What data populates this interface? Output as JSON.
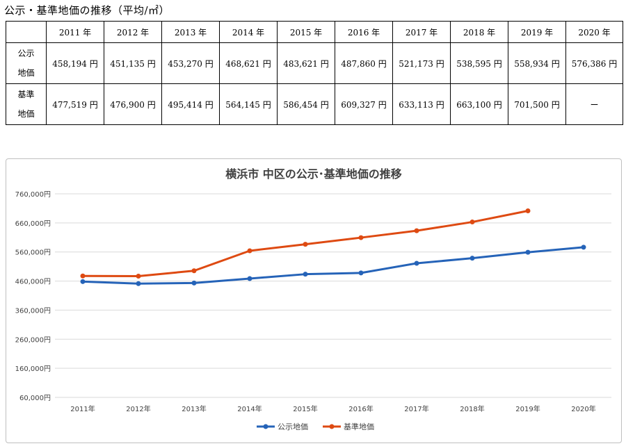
{
  "heading": "公示・基準地価の推移（平均/㎡）",
  "table": {
    "corner": "",
    "years": [
      "2011 年",
      "2012 年",
      "2013 年",
      "2014 年",
      "2015 年",
      "2016 年",
      "2017 年",
      "2018 年",
      "2019 年",
      "2020 年"
    ],
    "rows": [
      {
        "label_1": "公示",
        "label_2": "地価",
        "cells": [
          "458,194 円",
          "451,135 円",
          "453,270 円",
          "468,621 円",
          "483,621 円",
          "487,860 円",
          "521,173 円",
          "538,595 円",
          "558,934 円",
          "576,386 円"
        ]
      },
      {
        "label_1": "基準",
        "label_2": "地価",
        "cells": [
          "477,519 円",
          "476,900 円",
          "495,414 円",
          "564,145 円",
          "586,454 円",
          "609,327 円",
          "633,113 円",
          "663,100 円",
          "701,500 円",
          "ー"
        ]
      }
    ]
  },
  "chart_data": {
    "type": "line",
    "title": "横浜市 中区の公示･基準地価の推移",
    "categories": [
      "2011年",
      "2012年",
      "2013年",
      "2014年",
      "2015年",
      "2016年",
      "2017年",
      "2018年",
      "2019年",
      "2020年"
    ],
    "y_ticks": [
      "60,000円",
      "160,000円",
      "260,000円",
      "360,000円",
      "460,000円",
      "560,000円",
      "660,000円",
      "760,000円"
    ],
    "ylim": [
      60000,
      760000
    ],
    "y_tick_values": [
      60000,
      160000,
      260000,
      360000,
      460000,
      560000,
      660000,
      760000
    ],
    "grid": true,
    "legend_position": "bottom",
    "series": [
      {
        "name": "公示地価",
        "color": "#2563b8",
        "values": [
          458194,
          451135,
          453270,
          468621,
          483621,
          487860,
          521173,
          538595,
          558934,
          576386
        ]
      },
      {
        "name": "基準地価",
        "color": "#de4a12",
        "values": [
          477519,
          476900,
          495414,
          564145,
          586454,
          609327,
          633113,
          663100,
          701500,
          null
        ]
      }
    ]
  }
}
